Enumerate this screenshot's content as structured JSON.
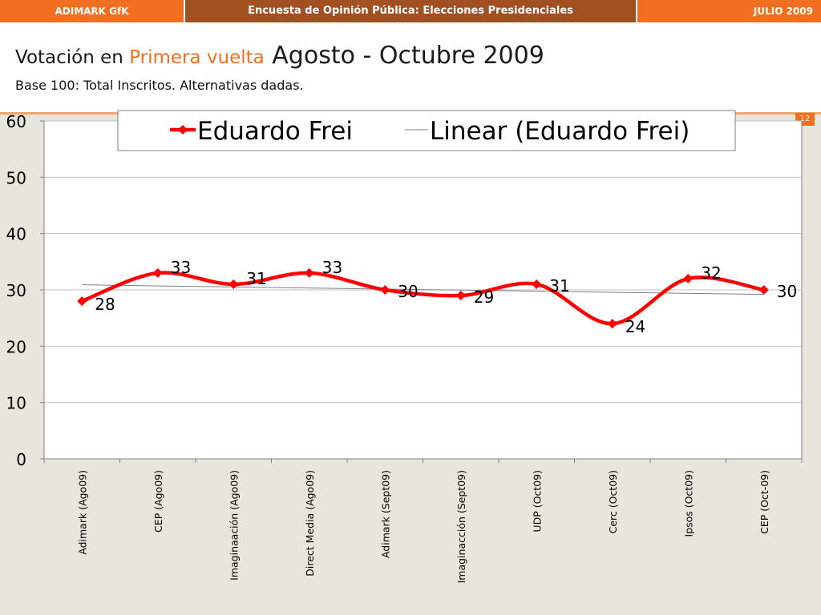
{
  "header": {
    "left": "ADIMARK GfK",
    "center": "Encuesta de Opinión Pública: Elecciones Presidenciales",
    "right": "JULIO 2009"
  },
  "title": {
    "part1": "Votación en ",
    "part2": "Primera vuelta",
    "part3": " Agosto - Octubre 2009"
  },
  "subtitle": "Base 100: Total Inscritos. Alternativas dadas.",
  "page_number": "12",
  "colors": {
    "accent": "#f26f21",
    "header_mid": "#a24f22",
    "series": "#ff0000",
    "trend": "#808080"
  },
  "chart_data": {
    "type": "line",
    "categories": [
      "Adimark (Ago09)",
      "CEP (Ago09)",
      "Imaginaación (Ago09)",
      "Direct Media (Ago09)",
      "Adimark (Sept09)",
      "Imaginacción (Sept09)",
      "UDP (Oct09)",
      "Cerc (Oct09)",
      "Ipsos (Oct09)",
      "CEP (Oct-09)"
    ],
    "series": [
      {
        "name": "Eduardo Frei",
        "values": [
          28,
          33,
          31,
          33,
          30,
          29,
          31,
          24,
          32,
          30
        ]
      }
    ],
    "trendline": {
      "name": "Linear (Eduardo Frei)",
      "start": 30.9,
      "end": 29.2
    },
    "ylim": [
      0,
      60
    ],
    "yticks": [
      "0",
      "10",
      "20",
      "30",
      "40",
      "50",
      "60"
    ],
    "grid": true,
    "legend": "top"
  }
}
